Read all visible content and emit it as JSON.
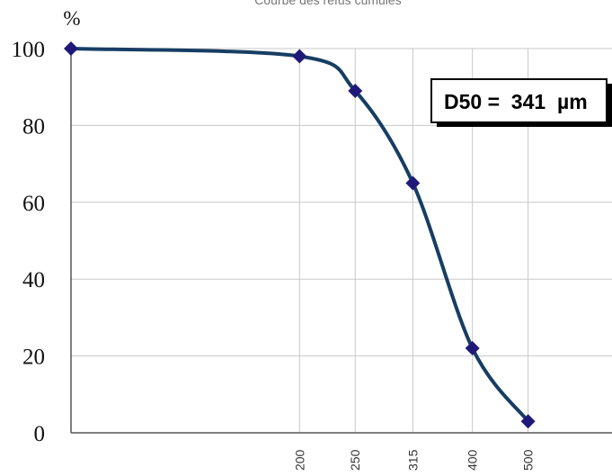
{
  "chart_data": {
    "type": "line",
    "title": "Courbe des refus cumulés",
    "ylabel": "%",
    "xlabel": "",
    "x_scale": "log",
    "xlim": [
      80,
      700
    ],
    "ylim": [
      0,
      100
    ],
    "x_ticks": [
      "200",
      "250",
      "315",
      "400",
      "500"
    ],
    "y_ticks": [
      "0",
      "20",
      "40",
      "60",
      "80",
      "100"
    ],
    "grid": true,
    "annotation": "D50 =  341  µm",
    "colors": {
      "line": "#173d63",
      "marker": "#1f1a7a",
      "grid": "#c8c8c8",
      "axis": "#555555"
    },
    "series": [
      {
        "x": [
          80,
          200,
          250,
          315,
          400,
          500
        ],
        "y": [
          100,
          98,
          89,
          65,
          22,
          3
        ]
      }
    ]
  }
}
